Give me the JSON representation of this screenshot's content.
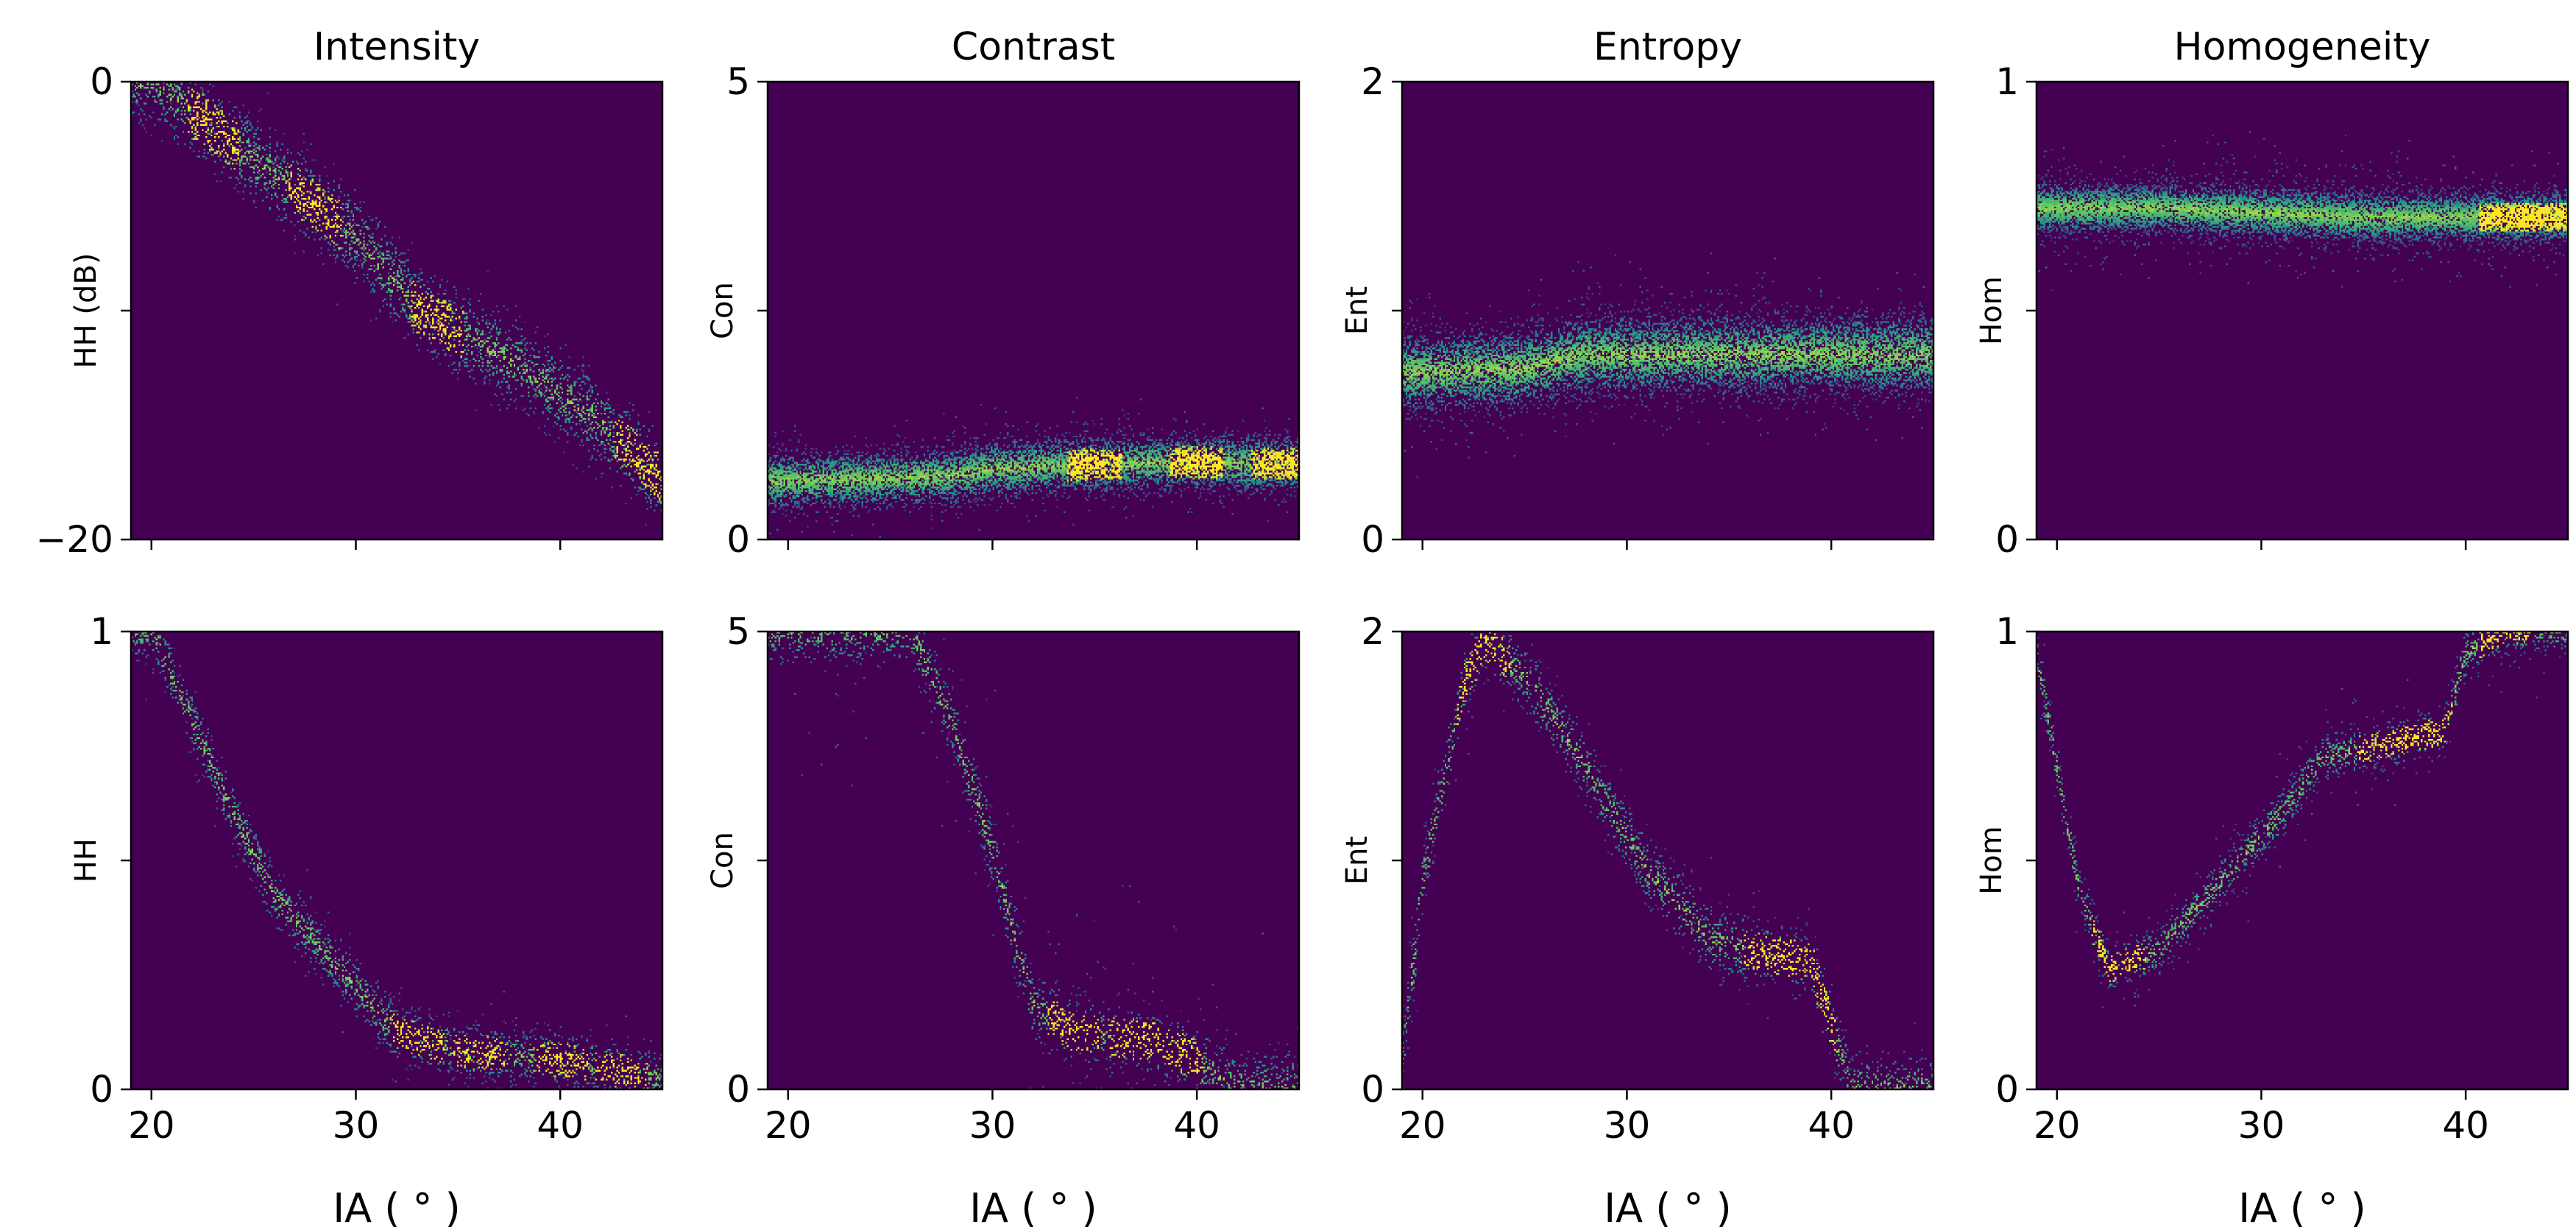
{
  "figure": {
    "background": "#ffffff",
    "plot_background": "#440154",
    "colormap": [
      "#440154",
      "#3b528b",
      "#21918c",
      "#5ec962",
      "#fde725"
    ],
    "x_tick_labels": [
      "20",
      "30",
      "40"
    ]
  },
  "chart_data": [
    {
      "type": "heatmap",
      "panel": "top-intensity",
      "title": "Intensity",
      "xlabel": "",
      "ylabel": "HH (dB)",
      "xlim": [
        19,
        45
      ],
      "ylim": [
        -20,
        0
      ],
      "yticks": [
        -20,
        -10,
        0
      ],
      "ytick_labels": [
        "−20",
        "",
        "0"
      ],
      "xticks": [
        20,
        30,
        40
      ],
      "show_xtick_labels": false,
      "density_trend": {
        "x": [
          20,
          25,
          30,
          33,
          38,
          42,
          45
        ],
        "y": [
          0,
          -3.5,
          -6.8,
          -10,
          -12.5,
          -15,
          -17.5
        ]
      },
      "spread": 0.9,
      "noise_spread": 0.8,
      "bright_x": [
        23,
        28,
        34,
        44
      ]
    },
    {
      "type": "heatmap",
      "panel": "top-contrast",
      "title": "Contrast",
      "xlabel": "",
      "ylabel": "Con",
      "xlim": [
        19,
        45
      ],
      "ylim": [
        0,
        5
      ],
      "yticks": [
        0,
        2.5,
        5
      ],
      "ytick_labels": [
        "0",
        "",
        "5"
      ],
      "xticks": [
        20,
        30,
        40
      ],
      "show_xtick_labels": false,
      "density_trend": {
        "x": [
          19,
          25,
          28,
          30,
          35,
          40,
          45
        ],
        "y": [
          0.62,
          0.65,
          0.68,
          0.75,
          0.8,
          0.82,
          0.8
        ]
      },
      "spread": 0.14,
      "noise_spread": 0.25,
      "bright_x": [
        35,
        40,
        44
      ]
    },
    {
      "type": "heatmap",
      "panel": "top-entropy",
      "title": "Entropy",
      "xlabel": "",
      "ylabel": "Ent",
      "xlim": [
        19,
        45
      ],
      "ylim": [
        0,
        2
      ],
      "yticks": [
        0,
        1,
        2
      ],
      "ytick_labels": [
        "0",
        "",
        "2"
      ],
      "xticks": [
        20,
        30,
        40
      ],
      "show_xtick_labels": false,
      "density_trend": {
        "x": [
          19,
          25,
          28,
          32,
          38,
          45
        ],
        "y": [
          0.72,
          0.74,
          0.8,
          0.8,
          0.8,
          0.8
        ]
      },
      "spread": 0.08,
      "noise_spread": 0.15,
      "bright_x": []
    },
    {
      "type": "heatmap",
      "panel": "top-homogeneity",
      "title": "Homogeneity",
      "xlabel": "",
      "ylabel": "Hom",
      "xlim": [
        19,
        45
      ],
      "ylim": [
        0,
        1
      ],
      "yticks": [
        0,
        0.5,
        1
      ],
      "ytick_labels": [
        "0",
        "",
        "1"
      ],
      "xticks": [
        20,
        30,
        40
      ],
      "show_xtick_labels": false,
      "density_trend": {
        "x": [
          19,
          25,
          30,
          35,
          40,
          45
        ],
        "y": [
          0.72,
          0.72,
          0.71,
          0.7,
          0.7,
          0.7
        ]
      },
      "spread": 0.025,
      "noise_spread": 0.06,
      "bright_x": [
        42,
        44
      ]
    },
    {
      "type": "heatmap",
      "panel": "bottom-intensity",
      "title": "",
      "xlabel": "IA ( ° )",
      "ylabel": "HH",
      "xlim": [
        19,
        45
      ],
      "ylim": [
        0,
        1
      ],
      "yticks": [
        0,
        0.5,
        1
      ],
      "ytick_labels": [
        "0",
        "",
        "1"
      ],
      "xticks": [
        20,
        30,
        40
      ],
      "show_xtick_labels": true,
      "density_trend": {
        "x": [
          20,
          22,
          24,
          26,
          28,
          30,
          32,
          35,
          40,
          45
        ],
        "y": [
          1.0,
          0.8,
          0.6,
          0.42,
          0.32,
          0.22,
          0.12,
          0.08,
          0.06,
          0.02
        ]
      },
      "spread": 0.03,
      "noise_spread": 0.05,
      "bright_x": [
        33,
        36,
        40,
        43
      ]
    },
    {
      "type": "heatmap",
      "panel": "bottom-contrast",
      "title": "",
      "xlabel": "IA ( ° )",
      "ylabel": "Con",
      "xlim": [
        19,
        45
      ],
      "ylim": [
        0,
        5
      ],
      "yticks": [
        0,
        2.5,
        5
      ],
      "ytick_labels": [
        "0",
        "",
        "5"
      ],
      "xticks": [
        20,
        30,
        40
      ],
      "show_xtick_labels": true,
      "density_trend": {
        "x": [
          26,
          28,
          30,
          31,
          32,
          34,
          38,
          40,
          42
        ],
        "y": [
          5,
          4.0,
          2.6,
          1.7,
          0.9,
          0.6,
          0.5,
          0.3,
          0
        ]
      },
      "spread": 0.18,
      "noise_spread": 0.7,
      "bright_x": [
        34,
        37,
        39
      ]
    },
    {
      "type": "heatmap",
      "panel": "bottom-entropy",
      "title": "",
      "xlabel": "IA ( ° )",
      "ylabel": "Ent",
      "xlim": [
        19,
        45
      ],
      "ylim": [
        0,
        2
      ],
      "yticks": [
        0,
        1,
        2
      ],
      "ytick_labels": [
        "0",
        "",
        "2"
      ],
      "xticks": [
        20,
        30,
        40
      ],
      "show_xtick_labels": true,
      "density_trend": {
        "x": [
          19,
          20,
          22,
          23,
          25,
          28,
          31,
          34,
          37,
          39,
          41
        ],
        "y": [
          0.1,
          0.9,
          1.75,
          1.95,
          1.8,
          1.4,
          0.95,
          0.65,
          0.58,
          0.55,
          0
        ]
      },
      "spread": 0.07,
      "noise_spread": 0.12,
      "bright_x": [
        23,
        37,
        39
      ]
    },
    {
      "type": "heatmap",
      "panel": "bottom-homogeneity",
      "title": "",
      "xlabel": "IA ( ° )",
      "ylabel": "Hom",
      "xlim": [
        19,
        45
      ],
      "ylim": [
        0,
        1
      ],
      "yticks": [
        0,
        0.5,
        1
      ],
      "ytick_labels": [
        "0",
        "",
        "1"
      ],
      "xticks": [
        20,
        30,
        40
      ],
      "show_xtick_labels": true,
      "density_trend": {
        "x": [
          19,
          21,
          22.5,
          25,
          28,
          31,
          33,
          36,
          39,
          40,
          42,
          45
        ],
        "y": [
          0.95,
          0.45,
          0.26,
          0.3,
          0.45,
          0.6,
          0.72,
          0.75,
          0.78,
          0.95,
          1.0,
          1.0
        ]
      },
      "spread": 0.025,
      "noise_spread": 0.06,
      "bright_x": [
        23,
        36,
        38,
        42
      ]
    }
  ]
}
